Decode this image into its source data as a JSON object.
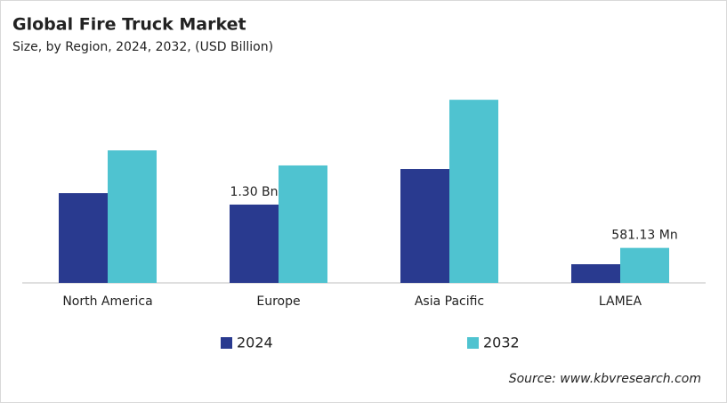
{
  "chart_data": {
    "type": "bar",
    "title": "Global Fire Truck Market",
    "subtitle": "Size, by Region, 2024, 2032, (USD Billion)",
    "categories": [
      "North America",
      "Europe",
      "Asia Pacific",
      "LAMEA"
    ],
    "series": [
      {
        "name": "2024",
        "color": "#293a8f",
        "values": [
          1.49,
          1.3,
          1.89,
          0.31
        ],
        "value_labels": [
          null,
          "1.30 Bn",
          null,
          null
        ]
      },
      {
        "name": "2032",
        "color": "#4fc3d0",
        "values": [
          2.2,
          1.95,
          3.04,
          0.58113
        ],
        "value_labels": [
          null,
          null,
          null,
          "581.13 Mn"
        ]
      }
    ],
    "ylim": [
      0,
      3.5
    ],
    "source": "Source: www.kbvresearch.com"
  }
}
